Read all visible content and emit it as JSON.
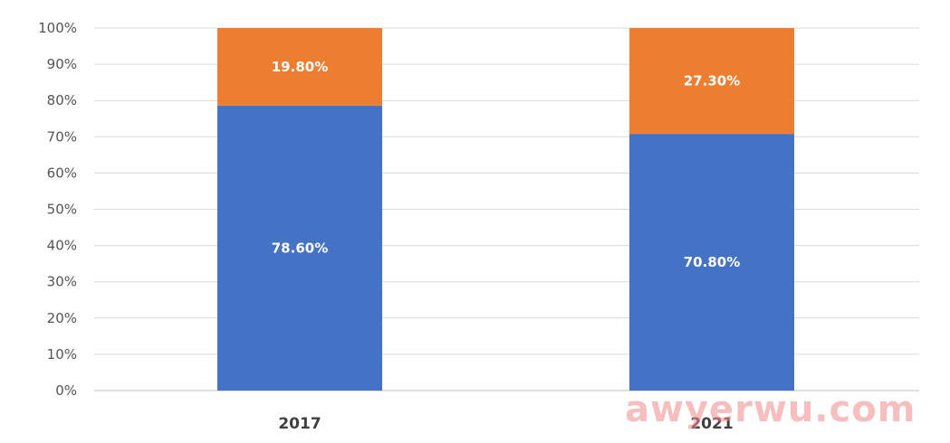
{
  "chart_data": {
    "type": "bar",
    "stacked": true,
    "categories": [
      "2017",
      "2021"
    ],
    "series": [
      {
        "values": [
          78.6,
          70.8
        ],
        "color": "#4472c4",
        "labels": [
          "78.60%",
          "70.80%"
        ]
      },
      {
        "values": [
          19.8,
          27.3
        ],
        "color": "#ed7d31",
        "labels": [
          "19.80%",
          "27.30%"
        ]
      }
    ],
    "ylim": [
      0,
      100
    ],
    "yticks": [
      "0%",
      "10%",
      "20%",
      "30%",
      "40%",
      "50%",
      "60%",
      "70%",
      "80%",
      "90%",
      "100%"
    ],
    "grid": true,
    "legend": "none"
  },
  "watermark": "awyerwu.com"
}
